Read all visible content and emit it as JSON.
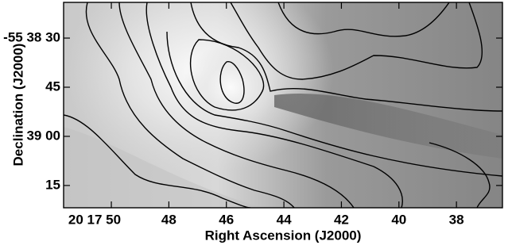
{
  "chart_data": {
    "type": "image",
    "xlabel": "Right Ascension (J2000)",
    "ylabel": "Declination (J2000)",
    "xlim": [
      51.66,
      36.4
    ],
    "xticks": [
      {
        "value": 50,
        "label": "20 17 50"
      },
      48,
      46,
      44,
      42,
      40,
      38
    ],
    "ylim": [
      81.8,
      19.1
    ],
    "yticks": [
      {
        "value": 30,
        "label": "-55 38 30"
      },
      45,
      {
        "value": 60,
        "label": "39 00"
      },
      {
        "value": 75,
        "label": "15"
      }
    ]
  }
}
